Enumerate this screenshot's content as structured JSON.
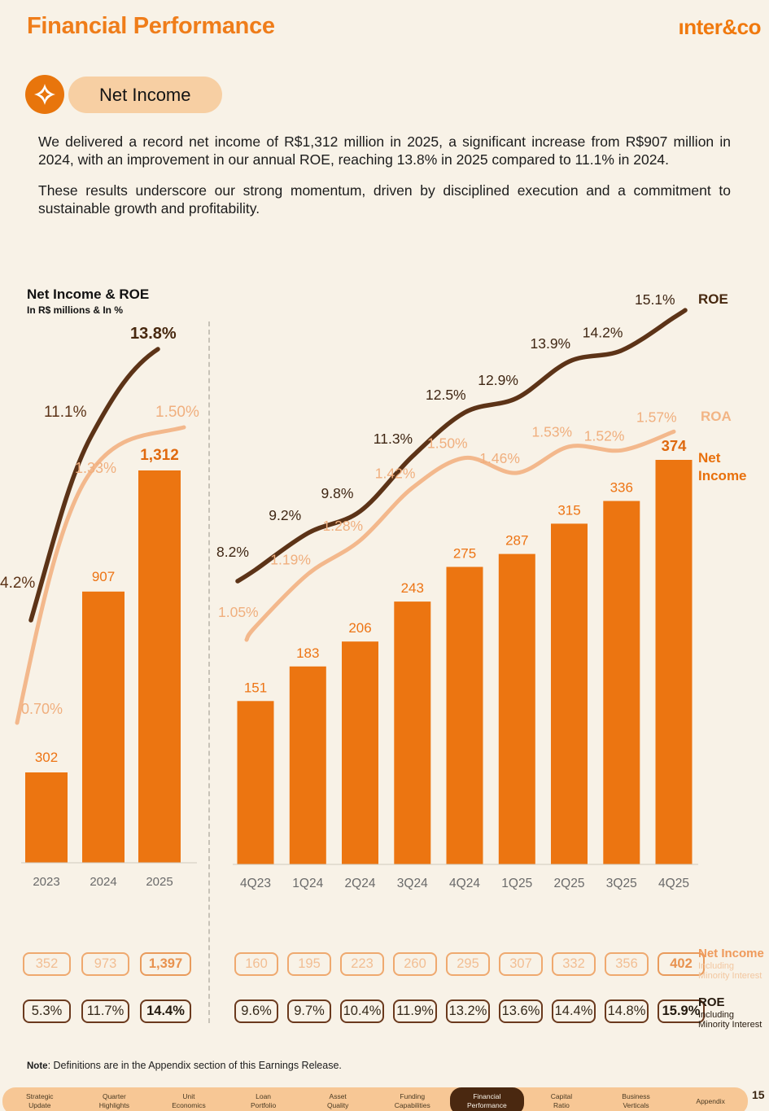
{
  "header": {
    "title": "Financial Performance",
    "logo": "ınter&co"
  },
  "section": {
    "badge_label": "Net Income"
  },
  "intro": {
    "paragraph1": "We delivered a record net income of R$1,312 million in 2025, a significant increase from R$907 million in 2024, with an improvement in our annual ROE, reaching 13.8% in 2025 compared to 11.1% in 2024.",
    "paragraph2": "These results underscore our strong momentum, driven by disciplined execution and a commitment to sustainable growth and profitability."
  },
  "chart": {
    "title": "Net Income & ROE",
    "subtitle": "In R$ millions & In %",
    "legend": {
      "roe": "ROE",
      "roa": "ROA",
      "net_income_line1": "Net",
      "net_income_line2": "Income"
    }
  },
  "chart_data": [
    {
      "type": "bar",
      "title": "Net Income & ROE — annual",
      "categories": [
        "2023",
        "2024",
        "2025"
      ],
      "series": [
        {
          "name": "Net Income",
          "type": "bar",
          "values": [
            302,
            907,
            1312
          ],
          "labels": [
            "302",
            "907",
            "1,312"
          ]
        },
        {
          "name": "ROE",
          "type": "line",
          "values": [
            4.2,
            11.1,
            13.8
          ],
          "labels": [
            "4.2%",
            "11.1%",
            "13.8%"
          ]
        },
        {
          "name": "ROA",
          "type": "line",
          "values": [
            0.7,
            1.33,
            1.5
          ],
          "labels": [
            "0.70%",
            "1.33%",
            "1.50%"
          ]
        }
      ],
      "ylabel": "R$ millions / %"
    },
    {
      "type": "bar",
      "title": "Net Income & ROE — quarterly",
      "categories": [
        "4Q23",
        "1Q24",
        "2Q24",
        "3Q24",
        "4Q24",
        "1Q25",
        "2Q25",
        "3Q25",
        "4Q25"
      ],
      "series": [
        {
          "name": "Net Income",
          "type": "bar",
          "values": [
            151,
            183,
            206,
            243,
            275,
            287,
            315,
            336,
            374
          ],
          "labels": [
            "151",
            "183",
            "206",
            "243",
            "275",
            "287",
            "315",
            "336",
            "374"
          ]
        },
        {
          "name": "ROE",
          "type": "line",
          "values": [
            8.2,
            9.2,
            9.8,
            11.3,
            12.5,
            12.9,
            13.9,
            14.2,
            15.1
          ],
          "labels": [
            "8.2%",
            "9.2%",
            "9.8%",
            "11.3%",
            "12.5%",
            "12.9%",
            "13.9%",
            "14.2%",
            "15.1%"
          ]
        },
        {
          "name": "ROA",
          "type": "line",
          "values": [
            1.05,
            1.19,
            1.28,
            1.42,
            1.5,
            1.46,
            1.53,
            1.52,
            1.57
          ],
          "labels": [
            "1.05%",
            "1.19%",
            "1.28%",
            "1.42%",
            "1.50%",
            "1.46%",
            "1.53%",
            "1.52%",
            "1.57%"
          ]
        }
      ],
      "ylabel": "R$ millions / %"
    }
  ],
  "tables": {
    "net_income_minority": {
      "label_bold": "Net Income",
      "label_line2": "Including",
      "label_line3": "Minority Interest",
      "annual": [
        "352",
        "973",
        "1,397"
      ],
      "quarterly": [
        "160",
        "195",
        "223",
        "260",
        "295",
        "307",
        "332",
        "356",
        "402"
      ]
    },
    "roe_minority": {
      "label_bold": "ROE",
      "label_line2": "Including",
      "label_line3": "Minority Interest",
      "annual": [
        "5.3%",
        "11.7%",
        "14.4%"
      ],
      "quarterly": [
        "9.6%",
        "9.7%",
        "10.4%",
        "11.9%",
        "13.2%",
        "13.6%",
        "14.4%",
        "14.8%",
        "15.9%"
      ]
    }
  },
  "note": {
    "label": "Note",
    "text": ": Definitions are in the Appendix section of this Earnings Release."
  },
  "footer": {
    "tabs": [
      {
        "line1": "Strategic",
        "line2": "Update"
      },
      {
        "line1": "Quarter",
        "line2": "Highlights"
      },
      {
        "line1": "Unit",
        "line2": "Economics"
      },
      {
        "line1": "Loan",
        "line2": "Portfolio"
      },
      {
        "line1": "Asset",
        "line2": "Quality"
      },
      {
        "line1": "Funding",
        "line2": "Capabilities"
      },
      {
        "line1": "Financial",
        "line2": "Performance"
      },
      {
        "line1": "Capital",
        "line2": "Ratio"
      },
      {
        "line1": "Business",
        "line2": "Verticals"
      },
      {
        "line1": "Appendix",
        "line2": ""
      }
    ],
    "active_tab": "Financial Performance",
    "page_number": "15"
  },
  "colors": {
    "background": "#F8F2E7",
    "accent_orange": "#EC7511",
    "title_orange": "#EF7D1A",
    "roe_brown": "#5C3317",
    "roa_peach": "#F3B88C",
    "pill_peach": "#F7CFA3",
    "nav_peach": "#F7C795",
    "nav_active_brown": "#4A2810",
    "axis_gray": "#6A6A6A"
  }
}
